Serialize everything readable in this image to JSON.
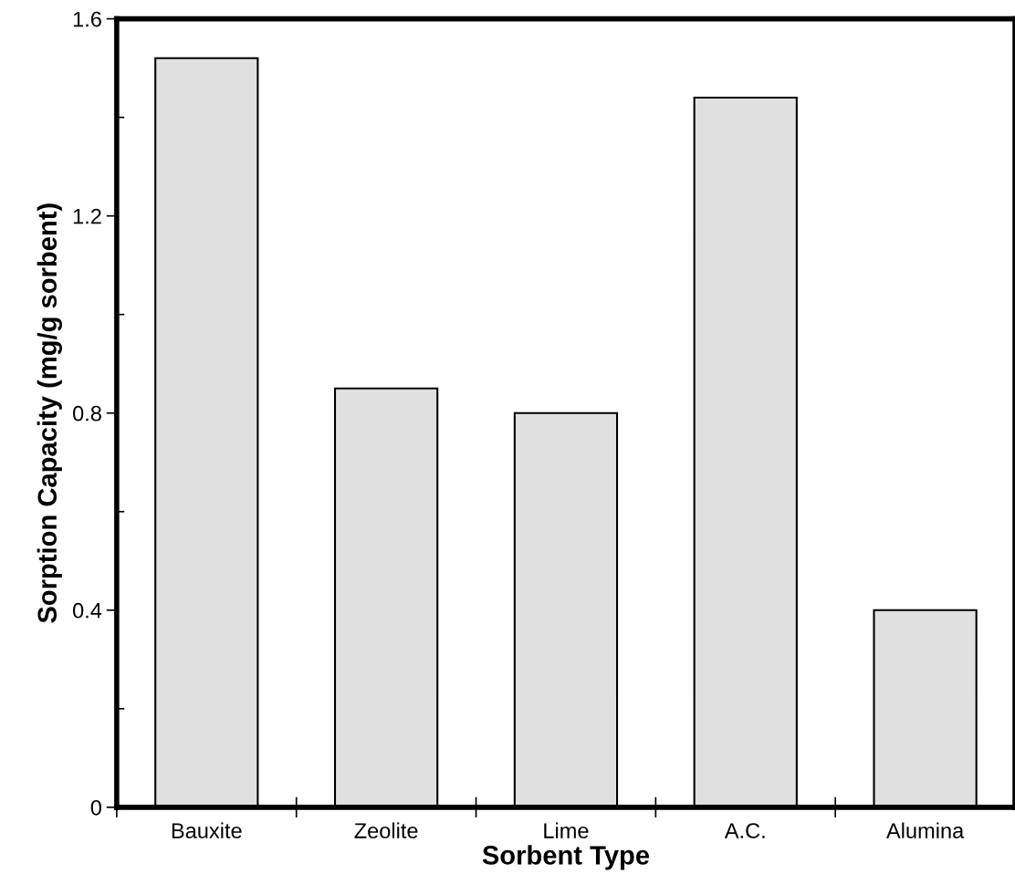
{
  "chart_data": {
    "type": "bar",
    "xlabel": "Sorbent Type",
    "ylabel": "Sorption Capacity (mg/g sorbent)",
    "categories": [
      "Bauxite",
      "Zeolite",
      "Lime",
      "A.C.",
      "Alumina"
    ],
    "values": [
      1.52,
      0.85,
      0.8,
      1.44,
      0.4
    ],
    "color": "#e0e0e0",
    "ylim": [
      0,
      1.6
    ],
    "yticks": [
      0,
      0.4,
      0.8,
      1.2,
      1.6
    ],
    "grid": false,
    "legend": false
  }
}
